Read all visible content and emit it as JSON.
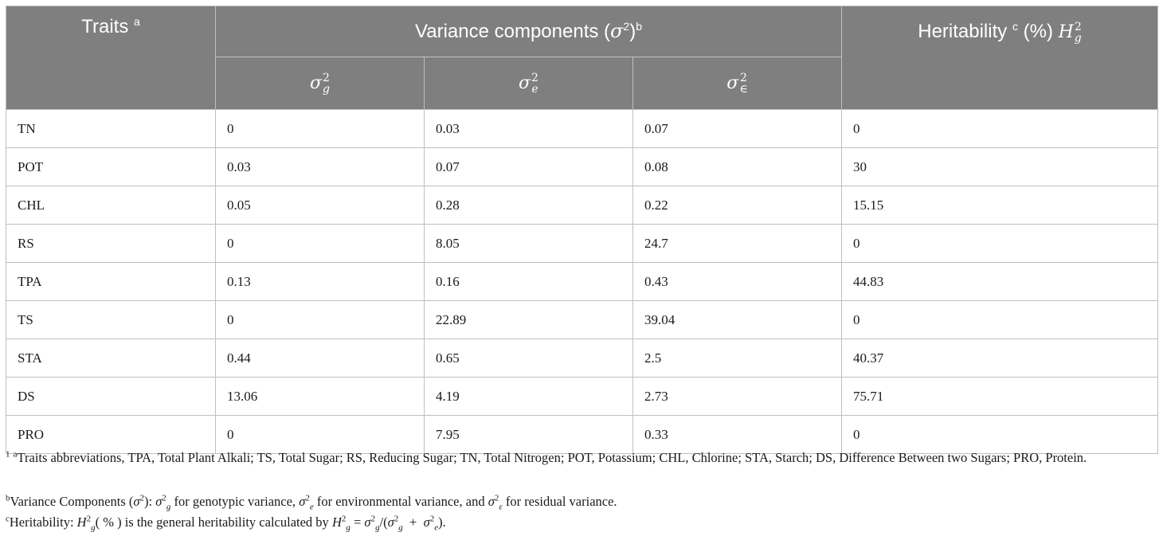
{
  "header": {
    "traits": "Traits",
    "traits_sup": "a",
    "variance_prefix": "Variance components (",
    "variance_symbol": "σ",
    "variance_exp": "2",
    "variance_close": ")",
    "variance_sup": "b",
    "heritability_prefix": "Heritability",
    "heritability_sup": "c",
    "heritability_mid": "(%)",
    "heritability_symbol": "H",
    "heritability_exp": "2",
    "heritability_sub": "g",
    "sub_symbol": "σ",
    "sub_exp": "2",
    "sub_g": "g",
    "sub_e": "e",
    "sub_res": "∈"
  },
  "rows": [
    {
      "trait": "TN",
      "g": "0",
      "e": "0.03",
      "res": "0.07",
      "h": "0"
    },
    {
      "trait": "POT",
      "g": "0.03",
      "e": "0.07",
      "res": "0.08",
      "h": "30"
    },
    {
      "trait": "CHL",
      "g": "0.05",
      "e": "0.28",
      "res": "0.22",
      "h": "15.15"
    },
    {
      "trait": "RS",
      "g": "0",
      "e": "8.05",
      "res": "24.7",
      "h": "0"
    },
    {
      "trait": "TPA",
      "g": "0.13",
      "e": "0.16",
      "res": "0.43",
      "h": "44.83"
    },
    {
      "trait": "TS",
      "g": "0",
      "e": "22.89",
      "res": "39.04",
      "h": "0"
    },
    {
      "trait": "STA",
      "g": "0.44",
      "e": "0.65",
      "res": "2.5",
      "h": "40.37"
    },
    {
      "trait": "DS",
      "g": "13.06",
      "e": "4.19",
      "res": "2.73",
      "h": "75.71"
    },
    {
      "trait": "PRO",
      "g": "0",
      "e": "7.95",
      "res": "0.33",
      "h": "0"
    }
  ],
  "footnotes": {
    "fn1_sup1": "1",
    "fn1_sup2": "a",
    "fn1_text": "Traits abbreviations, TPA, Total Plant Alkali; TS, Total Sugar; RS, Reducing Sugar; TN, Total Nitrogen; POT, Potassium; CHL, Chlorine; STA, Starch; DS, Difference Between two Sugars; PRO, Protein.",
    "fn2_sup": "b",
    "fn2_a": "Variance Components (",
    "fn2_b": "):",
    "fn2_c": "for genotypic variance,",
    "fn2_d": "for environmental variance, and",
    "fn2_e": "for residual variance.",
    "fn3_sup": "c",
    "fn3_a": "Heritability:",
    "fn3_b": "( % ) is the general heritability calculated by",
    "fn3_c": "=",
    "fn3_d": "/(",
    "fn3_e": "+",
    "fn3_f": ").",
    "sym_sigma": "σ",
    "sym_H": "H",
    "sym_2": "2",
    "sym_g": "g",
    "sym_e": "e",
    "sym_eps": "ε"
  }
}
